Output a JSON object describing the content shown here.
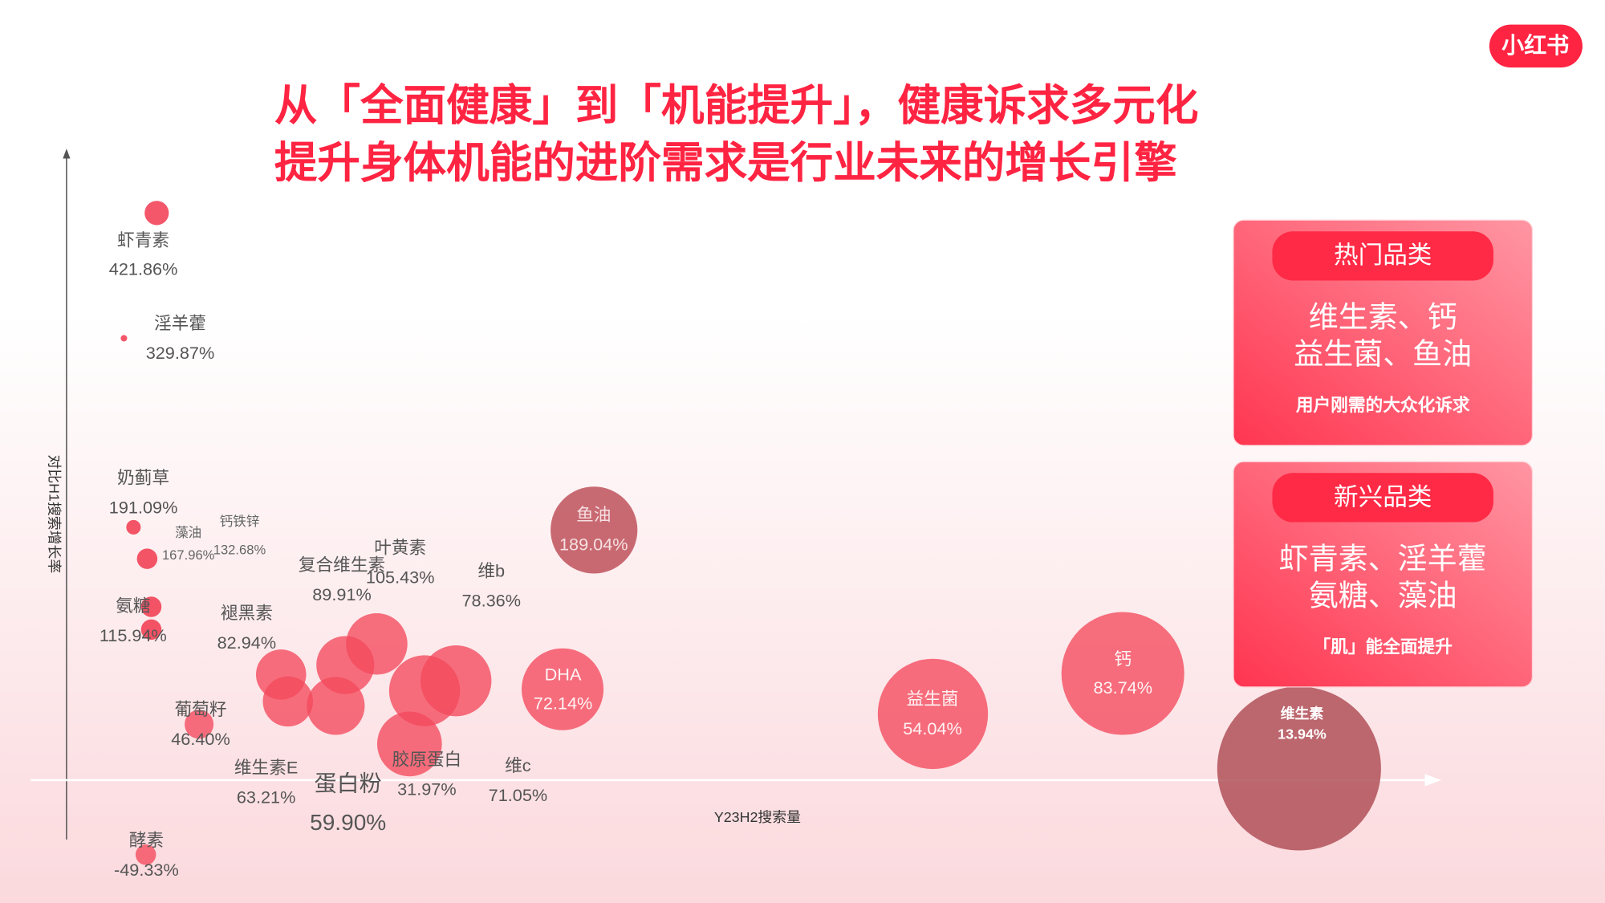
{
  "logo": "小红书",
  "chart_data": {
    "type": "bubble",
    "title": "从「全面健康」到「机能提升」，健康诉求多元化",
    "subtitle": "提升身体机能的进阶需求是行业未来的增长引擎",
    "x_label": "Y23H2搜索量",
    "y_label": "对比H1搜索增长率",
    "xlim": [
      0,
      100
    ],
    "ylim": [
      -60,
      470
    ],
    "categories": [
      "虾青素",
      "淫羊藿",
      "奶蓟草",
      "藻油",
      "钙铁锌",
      "氨糖",
      "褪黑素",
      "复合维生素",
      "叶黄素",
      "维b",
      "维c",
      "胶原蛋白",
      "蛋白粉",
      "维生素E",
      "葡萄籽",
      "酵素",
      "鱼油",
      "DHA",
      "益生菌",
      "钙",
      "维生素"
    ],
    "x": [
      6.6,
      4.2,
      4.9,
      5.9,
      6.2,
      6.2,
      15.7,
      20.4,
      22.7,
      28.5,
      26.2,
      25.1,
      19.7,
      16.2,
      9.7,
      5.8,
      38.6,
      36.3,
      63.4,
      77.3,
      90.2
    ],
    "values": [
      421.86,
      329.87,
      191.09,
      167.96,
      132.68,
      115.94,
      82.94,
      89.91,
      105.43,
      78.36,
      71.05,
      31.97,
      59.9,
      63.21,
      46.4,
      -49.33,
      189.04,
      72.14,
      54.04,
      83.74,
      13.94
    ],
    "value_labels": [
      "421.86%",
      "329.87%",
      "191.09%",
      "167.96%",
      "132.68%",
      "115.94%",
      "82.94%",
      "89.91%",
      "105.43%",
      "78.36%",
      "71.05%",
      "31.97%",
      "59.90%",
      "63.21%",
      "46.40%",
      "-49.33%",
      "189.04%",
      "72.14%",
      "54.04%",
      "83.74%",
      "13.94%"
    ],
    "sizes": [
      1.4,
      0.1,
      0.5,
      1,
      1,
      1,
      6,
      8,
      9,
      12,
      12,
      10,
      8,
      6,
      2,
      1,
      18,
      16,
      29,
      36,
      64
    ],
    "colors": [
      "#f0283f",
      "#f0283f",
      "#f0283f",
      "#f0283f",
      "#f0283f",
      "#f0283f",
      "#f4495c",
      "#f4495c",
      "#f4495c",
      "#f4495c",
      "#f4495c",
      "#f4495c",
      "#f4495c",
      "#f4495c",
      "#f4495c",
      "#f4495c",
      "#b9434d",
      "#f4495c",
      "#f4495c",
      "#f4495c",
      "#a9424b"
    ]
  },
  "cards": [
    {
      "title": "热门品类",
      "lines": [
        "维生素、钙",
        "益生菌、鱼油"
      ],
      "note": "用户刚需的大众化诉求"
    },
    {
      "title": "新兴品类",
      "lines": [
        "虾青素、淫羊藿",
        "氨糖、藻油"
      ],
      "note": "「肌」能全面提升"
    }
  ]
}
